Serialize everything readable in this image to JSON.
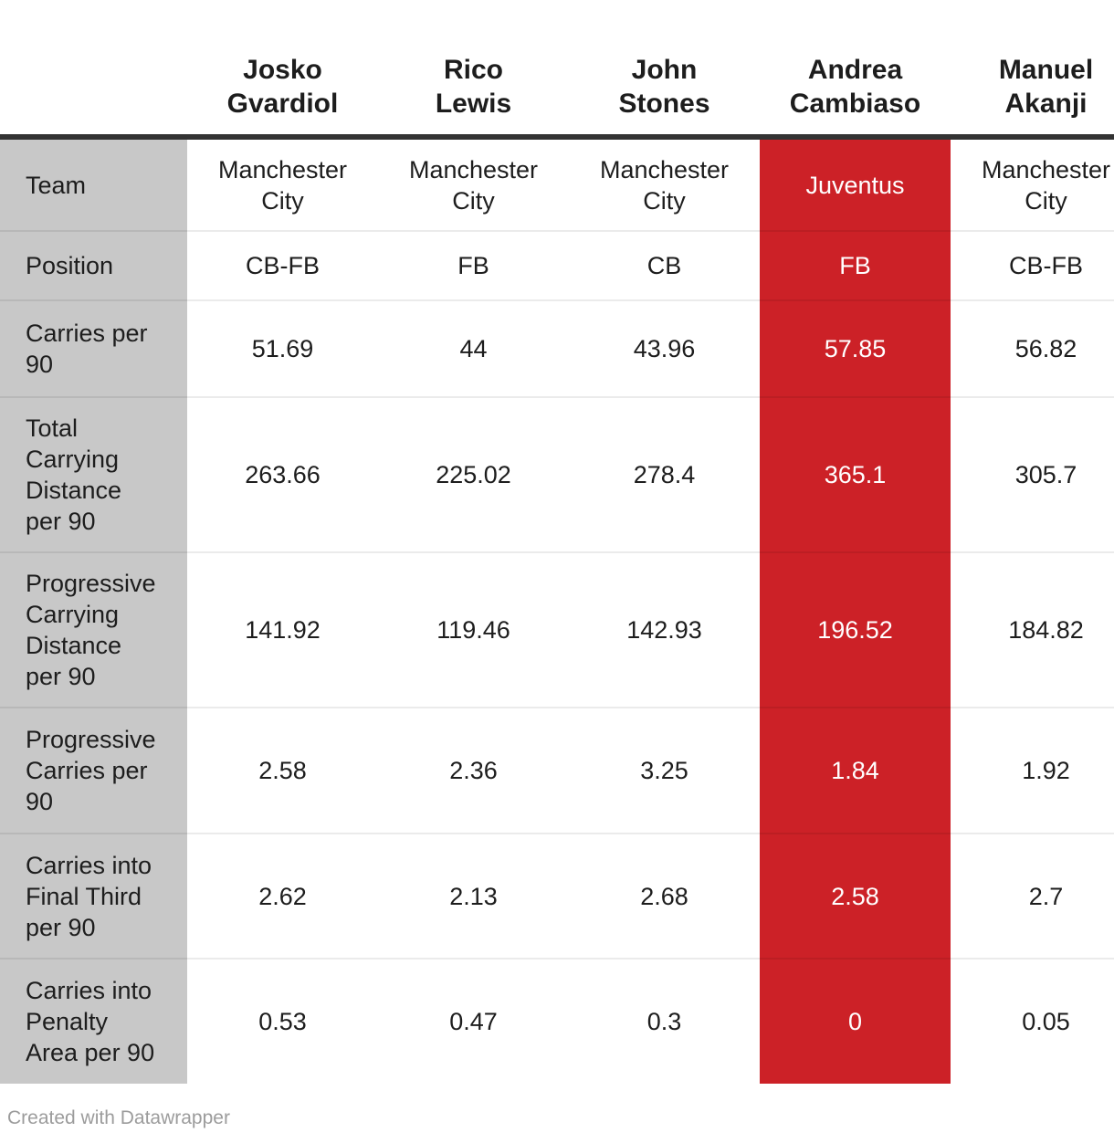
{
  "colors": {
    "highlight_red": "#cc2127",
    "label_column_bg": "#c8c8c8",
    "header_rule": "#333333",
    "text": "#1d1d1d",
    "credit_text": "#9c9c9c"
  },
  "table": {
    "row_labels": [
      "Team",
      "Position",
      "Carries per 90",
      "Total Carrying Distance per 90",
      "Progressive Carrying Distance per 90",
      "Progressive Carries per 90",
      "Carries into Final Third per 90",
      "Carries into Penalty Area per 90"
    ],
    "players": [
      {
        "first": "Josko",
        "last": "Gvardiol",
        "team": "Manchester City",
        "position": "CB-FB",
        "highlighted": false,
        "stats": {
          "carries": "51.69",
          "total_dist": "263.66",
          "prog_dist": "141.92",
          "prog_carries": "2.58",
          "final_third": "2.62",
          "penalty_area": "0.53"
        }
      },
      {
        "first": "Rico",
        "last": "Lewis",
        "team": "Manchester City",
        "position": "FB",
        "highlighted": false,
        "stats": {
          "carries": "44",
          "total_dist": "225.02",
          "prog_dist": "119.46",
          "prog_carries": "2.36",
          "final_third": "2.13",
          "penalty_area": "0.47"
        }
      },
      {
        "first": "John",
        "last": "Stones",
        "team": "Manchester City",
        "position": "CB",
        "highlighted": false,
        "stats": {
          "carries": "43.96",
          "total_dist": "278.4",
          "prog_dist": "142.93",
          "prog_carries": "3.25",
          "final_third": "2.68",
          "penalty_area": "0.3"
        }
      },
      {
        "first": "Andrea",
        "last": "Cambiaso",
        "team": "Juventus",
        "position": "FB",
        "highlighted": true,
        "stats": {
          "carries": "57.85",
          "total_dist": "365.1",
          "prog_dist": "196.52",
          "prog_carries": "1.84",
          "final_third": "2.58",
          "penalty_area": "0"
        }
      },
      {
        "first": "Manuel",
        "last": "Akanji",
        "team": "Manchester City",
        "position": "CB-FB",
        "highlighted": false,
        "stats": {
          "carries": "56.82",
          "total_dist": "305.7",
          "prog_dist": "184.82",
          "prog_carries": "1.92",
          "final_third": "2.7",
          "penalty_area": "0.05"
        }
      }
    ]
  },
  "footer": {
    "credit": "Created with Datawrapper"
  }
}
